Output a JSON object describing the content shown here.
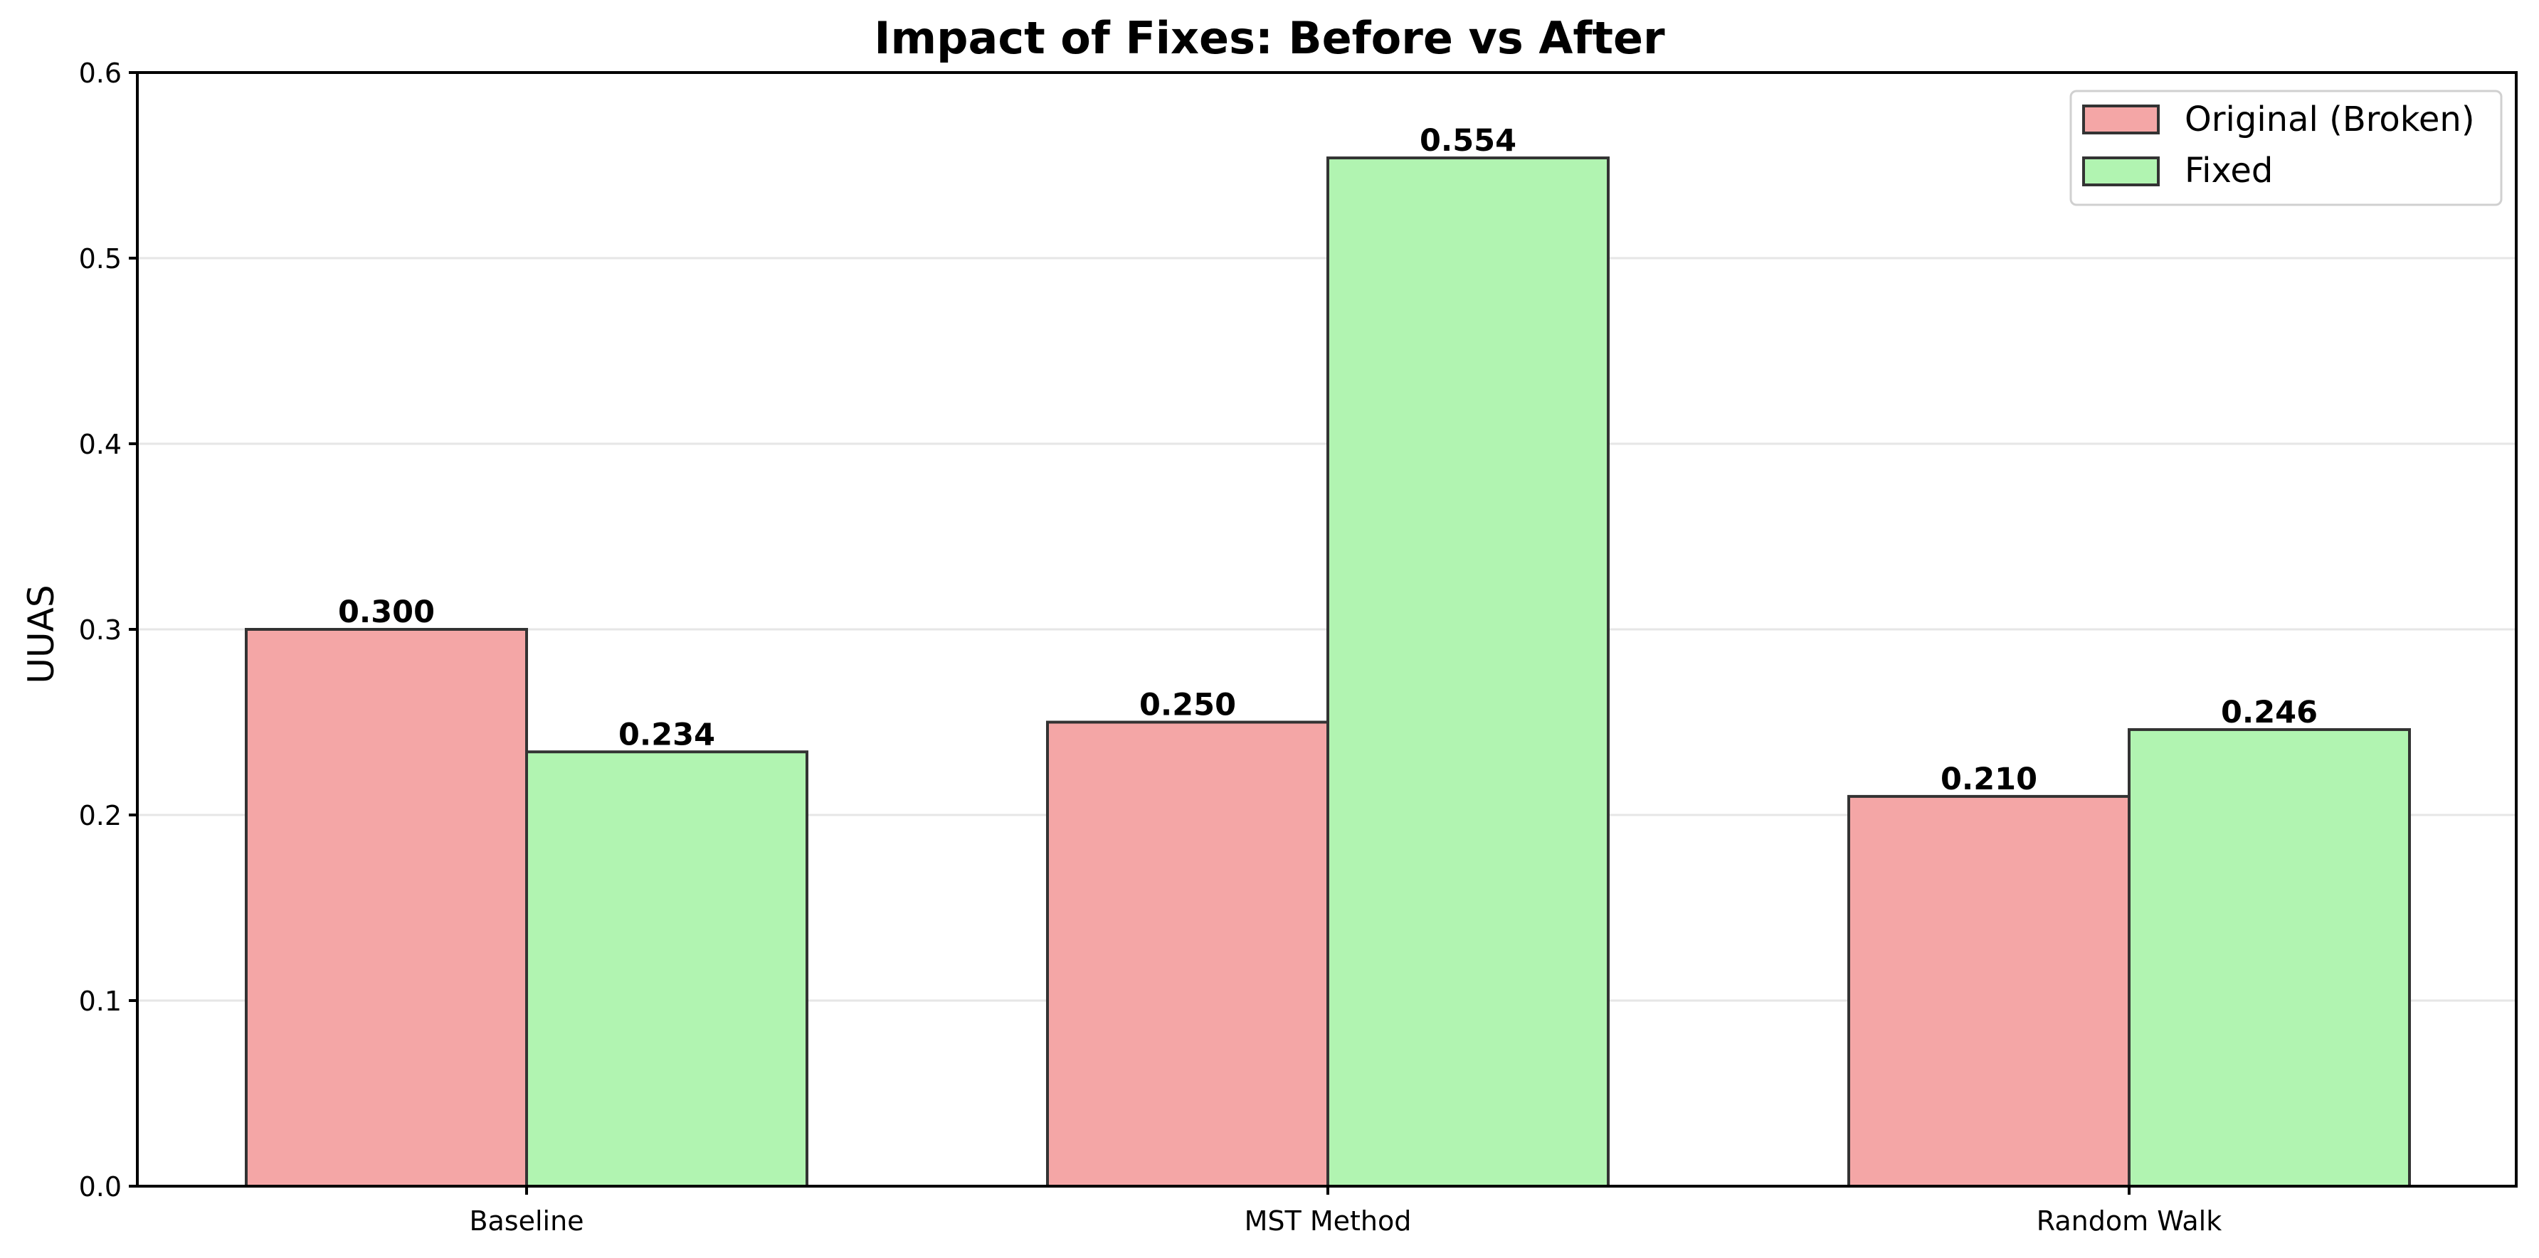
{
  "chart_data": {
    "type": "bar",
    "title": "Impact of Fixes: Before vs After",
    "xlabel": "",
    "ylabel": "UUAS",
    "categories": [
      "Baseline",
      "MST Method",
      "Random Walk"
    ],
    "series": [
      {
        "name": "Original (Broken)",
        "color": "#f4a6a6",
        "values": [
          0.3,
          0.25,
          0.21
        ],
        "labels": [
          "0.300",
          "0.250",
          "0.210"
        ]
      },
      {
        "name": "Fixed",
        "color": "#b1f4b1",
        "values": [
          0.234,
          0.554,
          0.246
        ],
        "labels": [
          "0.234",
          "0.554",
          "0.246"
        ]
      }
    ],
    "ylim": [
      0,
      0.6
    ],
    "yticks": [
      0.0,
      0.1,
      0.2,
      0.3,
      0.4,
      0.5,
      0.6
    ],
    "ytick_labels": [
      "0.0",
      "0.1",
      "0.2",
      "0.3",
      "0.4",
      "0.5",
      "0.6"
    ],
    "grid": "y-major",
    "legend_position": "top-right"
  }
}
